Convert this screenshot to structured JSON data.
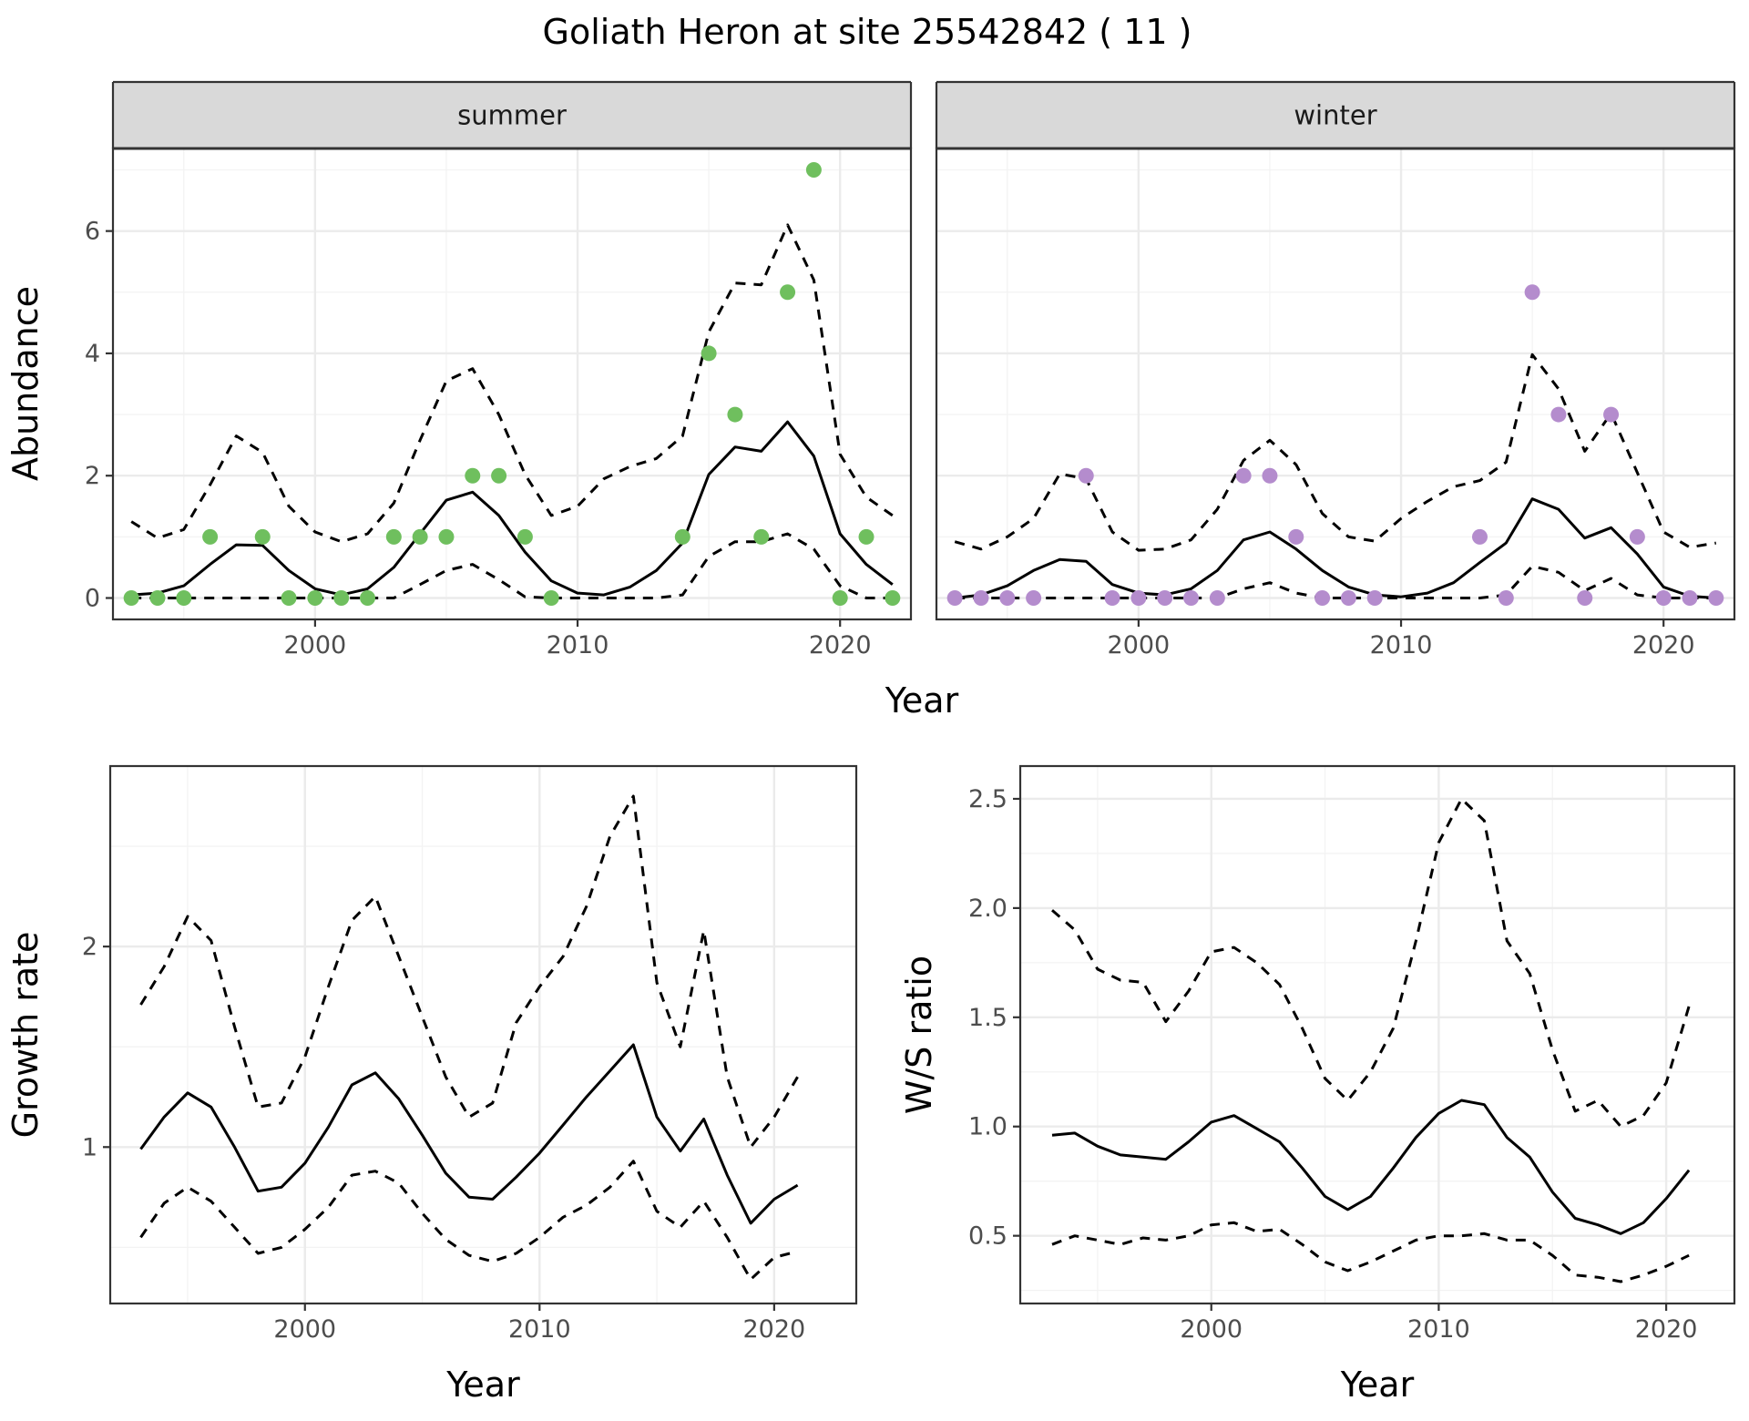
{
  "figure": {
    "title": "Goliath Heron at site 25542842 ( 11 )",
    "top_x_label": "Year",
    "colors": {
      "summer": "#6fbf5e",
      "winter": "#b48ccd",
      "line": "#000000"
    }
  },
  "chart_data": [
    {
      "type": "line",
      "facet": "summer",
      "ylabel": "Abundance",
      "xlim": [
        1992.3,
        2022.7
      ],
      "ylim": [
        -0.35,
        7.35
      ],
      "x_ticks": [
        2000,
        2010,
        2020
      ],
      "y_ticks": [
        0,
        2,
        4,
        6
      ],
      "x": [
        1993,
        1994,
        1995,
        1996,
        1997,
        1998,
        1999,
        2000,
        2001,
        2002,
        2003,
        2004,
        2005,
        2006,
        2007,
        2008,
        2009,
        2010,
        2011,
        2012,
        2013,
        2014,
        2015,
        2016,
        2017,
        2018,
        2019,
        2020,
        2021,
        2022
      ],
      "series": [
        {
          "name": "",
          "style": "solid",
          "values": [
            0.05,
            0.08,
            0.2,
            0.55,
            0.87,
            0.86,
            0.45,
            0.15,
            0.05,
            0.15,
            0.5,
            1.05,
            1.6,
            1.73,
            1.35,
            0.75,
            0.28,
            0.08,
            0.05,
            0.18,
            0.45,
            0.9,
            2.02,
            2.47,
            2.4,
            2.88,
            2.32,
            1.05,
            0.55,
            0.22
          ]
        },
        {
          "name": "",
          "style": "dashed",
          "values": [
            1.25,
            0.98,
            1.12,
            1.85,
            2.65,
            2.38,
            1.5,
            1.08,
            0.92,
            1.05,
            1.55,
            2.58,
            3.55,
            3.75,
            3.0,
            2.02,
            1.35,
            1.5,
            1.95,
            2.15,
            2.28,
            2.65,
            4.35,
            5.15,
            5.12,
            6.1,
            5.2,
            2.35,
            1.65,
            1.35
          ]
        },
        {
          "name": "",
          "style": "dashed",
          "values": [
            0,
            0,
            0,
            0,
            0,
            0,
            0,
            0,
            0,
            0,
            0,
            0.22,
            0.45,
            0.55,
            0.3,
            0.02,
            0,
            0,
            0,
            0,
            0,
            0.05,
            0.68,
            0.92,
            0.92,
            1.05,
            0.8,
            0.2,
            0,
            0
          ]
        }
      ],
      "points": {
        "x": [
          1993,
          1994,
          1995,
          1996,
          1998,
          1999,
          2000,
          2001,
          2002,
          2003,
          2004,
          2005,
          2006,
          2007,
          2008,
          2009,
          2014,
          2015,
          2016,
          2017,
          2018,
          2019,
          2020,
          2021,
          2022
        ],
        "y": [
          0,
          0,
          0,
          1,
          1,
          0,
          0,
          0,
          0,
          1,
          1,
          1,
          2,
          2,
          1,
          0,
          1,
          4,
          3,
          1,
          5,
          7,
          0,
          1,
          0
        ]
      }
    },
    {
      "type": "line",
      "facet": "winter",
      "ylabel": "",
      "xlim": [
        1992.3,
        2022.7
      ],
      "ylim": [
        -0.35,
        7.35
      ],
      "x_ticks": [
        2000,
        2010,
        2020
      ],
      "y_ticks": [
        0,
        2,
        4,
        6
      ],
      "x": [
        1993,
        1994,
        1995,
        1996,
        1997,
        1998,
        1999,
        2000,
        2001,
        2002,
        2003,
        2004,
        2005,
        2006,
        2007,
        2008,
        2009,
        2010,
        2011,
        2012,
        2013,
        2014,
        2015,
        2016,
        2017,
        2018,
        2019,
        2020,
        2021,
        2022
      ],
      "series": [
        {
          "name": "",
          "style": "solid",
          "values": [
            0,
            0.05,
            0.2,
            0.45,
            0.63,
            0.6,
            0.22,
            0.08,
            0.05,
            0.15,
            0.45,
            0.95,
            1.08,
            0.8,
            0.45,
            0.18,
            0.05,
            0.02,
            0.08,
            0.25,
            0.58,
            0.9,
            1.62,
            1.45,
            0.98,
            1.15,
            0.72,
            0.18,
            0.03,
            0
          ]
        },
        {
          "name": "",
          "style": "dashed",
          "values": [
            0.92,
            0.8,
            1.0,
            1.3,
            2.03,
            1.95,
            1.08,
            0.78,
            0.8,
            0.95,
            1.45,
            2.25,
            2.58,
            2.18,
            1.38,
            1.0,
            0.93,
            1.3,
            1.58,
            1.82,
            1.92,
            2.22,
            3.98,
            3.42,
            2.4,
            3.02,
            2.05,
            1.08,
            0.83,
            0.9
          ]
        },
        {
          "name": "",
          "style": "dashed",
          "values": [
            0,
            0,
            0,
            0,
            0,
            0,
            0,
            0,
            0,
            0,
            0,
            0.15,
            0.25,
            0.08,
            0,
            0,
            0,
            0,
            0,
            0,
            0,
            0.05,
            0.52,
            0.42,
            0.12,
            0.32,
            0.05,
            0,
            0,
            0
          ]
        }
      ],
      "points": {
        "x": [
          1993,
          1994,
          1995,
          1996,
          1998,
          1999,
          2000,
          2001,
          2002,
          2003,
          2004,
          2005,
          2006,
          2007,
          2008,
          2009,
          2013,
          2014,
          2015,
          2016,
          2017,
          2018,
          2019,
          2020,
          2021,
          2022
        ],
        "y": [
          0,
          0,
          0,
          0,
          2,
          0,
          0,
          0,
          0,
          0,
          2,
          2,
          1,
          0,
          0,
          0,
          1,
          0,
          5,
          3,
          0,
          3,
          1,
          0,
          0,
          0
        ]
      }
    },
    {
      "type": "line",
      "facet": "",
      "xlabel": "Year",
      "ylabel": "Growth rate",
      "xlim": [
        1991.7,
        2023.5
      ],
      "ylim": [
        0.22,
        2.9
      ],
      "x_ticks": [
        2000,
        2010,
        2020
      ],
      "y_ticks": [
        1,
        2
      ],
      "x": [
        1993,
        1994,
        1995,
        1996,
        1997,
        1998,
        1999,
        2000,
        2001,
        2002,
        2003,
        2004,
        2005,
        2006,
        2007,
        2008,
        2009,
        2010,
        2011,
        2012,
        2013,
        2014,
        2015,
        2016,
        2017,
        2018,
        2019,
        2020,
        2021
      ],
      "series": [
        {
          "name": "",
          "style": "solid",
          "values": [
            0.99,
            1.15,
            1.27,
            1.2,
            1.0,
            0.78,
            0.8,
            0.92,
            1.1,
            1.31,
            1.37,
            1.24,
            1.06,
            0.87,
            0.75,
            0.74,
            0.85,
            0.97,
            1.11,
            1.25,
            1.38,
            1.51,
            1.15,
            0.98,
            1.14,
            0.86,
            0.62,
            0.74,
            0.81
          ]
        },
        {
          "name": "",
          "style": "dashed",
          "values": [
            1.71,
            1.9,
            2.15,
            2.03,
            1.6,
            1.2,
            1.22,
            1.45,
            1.8,
            2.13,
            2.25,
            1.95,
            1.65,
            1.35,
            1.15,
            1.22,
            1.62,
            1.8,
            1.95,
            2.2,
            2.55,
            2.75,
            1.82,
            1.5,
            2.08,
            1.35,
            1.0,
            1.15,
            1.35
          ]
        },
        {
          "name": "",
          "style": "dashed",
          "values": [
            0.55,
            0.72,
            0.8,
            0.73,
            0.6,
            0.47,
            0.5,
            0.59,
            0.7,
            0.86,
            0.88,
            0.82,
            0.67,
            0.54,
            0.46,
            0.43,
            0.47,
            0.55,
            0.65,
            0.71,
            0.8,
            0.93,
            0.68,
            0.6,
            0.73,
            0.55,
            0.34,
            0.45,
            0.48
          ]
        }
      ]
    },
    {
      "type": "line",
      "facet": "",
      "xlabel": "Year",
      "ylabel": "W/S ratio",
      "xlim": [
        1991.6,
        2023.0
      ],
      "ylim": [
        0.19,
        2.65
      ],
      "x_ticks": [
        2000,
        2010,
        2020
      ],
      "y_ticks": [
        0.5,
        1.0,
        1.5,
        2.0,
        2.5
      ],
      "x": [
        1993,
        1994,
        1995,
        1996,
        1997,
        1998,
        1999,
        2000,
        2001,
        2002,
        2003,
        2004,
        2005,
        2006,
        2007,
        2008,
        2009,
        2010,
        2011,
        2012,
        2013,
        2014,
        2015,
        2016,
        2017,
        2018,
        2019,
        2020,
        2021
      ],
      "series": [
        {
          "name": "",
          "style": "solid",
          "values": [
            0.96,
            0.97,
            0.91,
            0.87,
            0.86,
            0.85,
            0.93,
            1.02,
            1.05,
            0.99,
            0.93,
            0.81,
            0.68,
            0.62,
            0.68,
            0.81,
            0.95,
            1.06,
            1.12,
            1.1,
            0.95,
            0.86,
            0.7,
            0.58,
            0.55,
            0.51,
            0.56,
            0.67,
            0.8
          ]
        },
        {
          "name": "",
          "style": "dashed",
          "values": [
            1.99,
            1.9,
            1.72,
            1.67,
            1.66,
            1.48,
            1.62,
            1.8,
            1.82,
            1.75,
            1.65,
            1.45,
            1.22,
            1.12,
            1.25,
            1.45,
            1.85,
            2.3,
            2.5,
            2.4,
            1.85,
            1.7,
            1.35,
            1.07,
            1.12,
            1.0,
            1.05,
            1.2,
            1.55
          ]
        },
        {
          "name": "",
          "style": "dashed",
          "values": [
            0.46,
            0.5,
            0.48,
            0.46,
            0.49,
            0.48,
            0.5,
            0.55,
            0.56,
            0.52,
            0.53,
            0.46,
            0.38,
            0.34,
            0.38,
            0.43,
            0.48,
            0.5,
            0.5,
            0.51,
            0.48,
            0.48,
            0.41,
            0.32,
            0.31,
            0.29,
            0.32,
            0.36,
            0.41
          ]
        }
      ]
    }
  ]
}
